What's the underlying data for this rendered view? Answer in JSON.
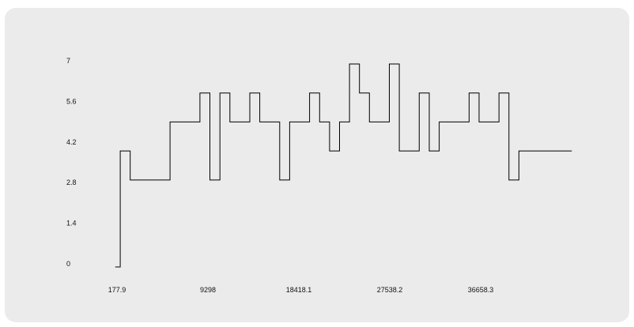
{
  "chart_data": {
    "type": "line",
    "step": true,
    "title": "",
    "xlabel": "",
    "ylabel": "",
    "xlim": [
      177.9,
      45778.4
    ],
    "ylim": [
      0,
      7
    ],
    "x_ticks": [
      "177.9",
      "9298",
      "18418.1",
      "27538.2",
      "36658.3"
    ],
    "y_ticks": [
      "0",
      "1.4",
      "2.8",
      "4.2",
      "5.6",
      "7"
    ],
    "grid": false,
    "legend": "none",
    "line_color": "#000000",
    "background": "#ebebeb",
    "series": [
      {
        "points": [
          [
            0,
            0
          ],
          [
            1000,
            4
          ],
          [
            2000,
            3
          ],
          [
            3000,
            3
          ],
          [
            4000,
            3
          ],
          [
            5000,
            3
          ],
          [
            6000,
            5
          ],
          [
            7000,
            5
          ],
          [
            8000,
            5
          ],
          [
            9000,
            6
          ],
          [
            10000,
            3
          ],
          [
            11000,
            6
          ],
          [
            12000,
            5
          ],
          [
            13000,
            5
          ],
          [
            14000,
            6
          ],
          [
            15000,
            5
          ],
          [
            16000,
            5
          ],
          [
            17000,
            3
          ],
          [
            18000,
            5
          ],
          [
            19000,
            5
          ],
          [
            20000,
            6
          ],
          [
            21000,
            5
          ],
          [
            22000,
            4
          ],
          [
            23000,
            5
          ],
          [
            24000,
            7
          ],
          [
            25000,
            6
          ],
          [
            26000,
            5
          ],
          [
            27000,
            5
          ],
          [
            28000,
            7
          ],
          [
            29000,
            4
          ],
          [
            30000,
            4
          ],
          [
            31000,
            6
          ],
          [
            32000,
            4
          ],
          [
            33000,
            5
          ],
          [
            34000,
            5
          ],
          [
            35000,
            5
          ],
          [
            36000,
            6
          ],
          [
            37000,
            5
          ],
          [
            38000,
            5
          ],
          [
            39000,
            6
          ],
          [
            40000,
            3
          ],
          [
            41000,
            4
          ],
          [
            42000,
            4
          ],
          [
            43000,
            4
          ],
          [
            44000,
            4
          ],
          [
            45000,
            4
          ],
          [
            45800,
            4
          ]
        ]
      }
    ]
  }
}
